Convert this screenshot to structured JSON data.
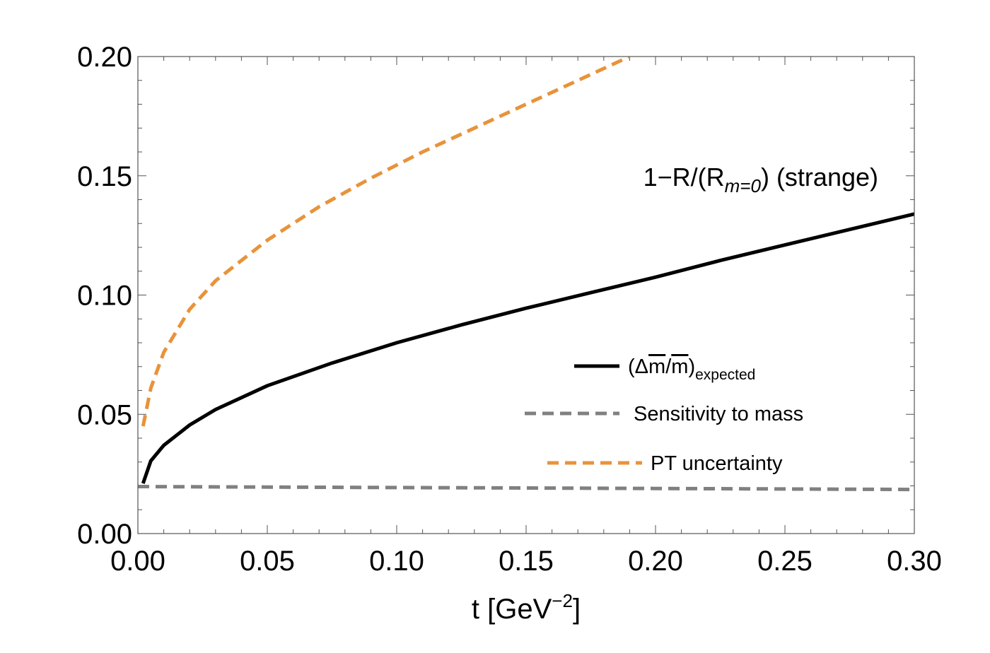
{
  "chart_data": {
    "type": "line",
    "inset_title": {
      "main": "1−R/(R",
      "sub": "m=0",
      "tail": ") (strange)"
    },
    "xlabel": {
      "text": "t [GeV",
      "sup": "−2",
      "tail": "]"
    },
    "ylabel": "",
    "xlim": [
      0,
      0.3
    ],
    "ylim": [
      0,
      0.2
    ],
    "x_ticks": [
      0.0,
      0.05,
      0.1,
      0.15,
      0.2,
      0.25,
      0.3
    ],
    "x_tick_labels": [
      "0.00",
      "0.05",
      "0.10",
      "0.15",
      "0.20",
      "0.25",
      "0.30"
    ],
    "y_ticks": [
      0.0,
      0.05,
      0.1,
      0.15,
      0.2
    ],
    "y_tick_labels": [
      "0.00",
      "0.05",
      "0.10",
      "0.15",
      "0.20"
    ],
    "legend_position": "lower-right",
    "legend": [
      {
        "label": "(Δm/m)",
        "overline_parts": true,
        "sub": "expected",
        "style": "solid",
        "color": "#000000"
      },
      {
        "label": "Sensitivity to mass",
        "style": "dashed",
        "color": "#808080"
      },
      {
        "label": "PT uncertainty",
        "style": "dashed",
        "color": "#E8933A"
      }
    ],
    "series": [
      {
        "style": "solid",
        "color": "#000000",
        "x": [
          0.002,
          0.005,
          0.01,
          0.02,
          0.03,
          0.05,
          0.075,
          0.1,
          0.125,
          0.15,
          0.175,
          0.2,
          0.225,
          0.25,
          0.275,
          0.3
        ],
        "y": [
          0.021,
          0.0305,
          0.037,
          0.0455,
          0.052,
          0.062,
          0.0715,
          0.08,
          0.0875,
          0.0945,
          0.101,
          0.1075,
          0.1145,
          0.121,
          0.1275,
          0.134
        ]
      },
      {
        "style": "dashed",
        "color": "#808080",
        "x": [
          0.0,
          0.05,
          0.1,
          0.15,
          0.2,
          0.25,
          0.3
        ],
        "y": [
          0.0197,
          0.0195,
          0.0193,
          0.0191,
          0.0189,
          0.0187,
          0.0185
        ]
      },
      {
        "style": "dashed",
        "color": "#E8933A",
        "x": [
          0.002,
          0.005,
          0.01,
          0.02,
          0.03,
          0.05,
          0.07,
          0.09,
          0.11,
          0.13,
          0.15,
          0.17,
          0.19
        ],
        "y": [
          0.045,
          0.061,
          0.076,
          0.094,
          0.106,
          0.123,
          0.137,
          0.149,
          0.16,
          0.17,
          0.18,
          0.19,
          0.2
        ]
      }
    ]
  }
}
